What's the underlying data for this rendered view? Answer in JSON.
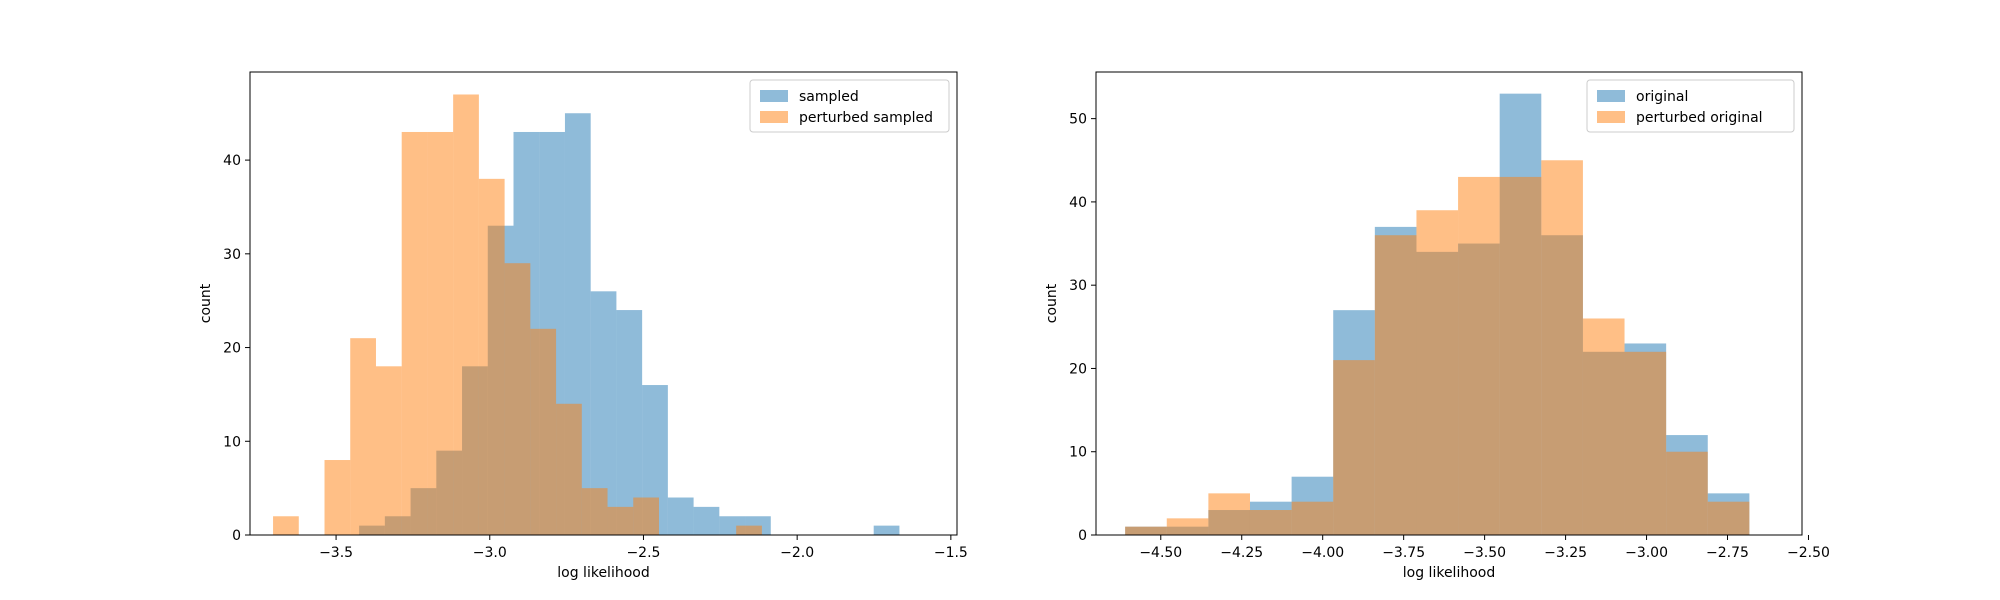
{
  "chart_data": [
    {
      "type": "histogram",
      "xlabel": "log likelihood",
      "ylabel": "count",
      "xlim": [
        -3.78,
        -1.48
      ],
      "ylim": [
        0,
        49.4
      ],
      "xticks": [
        -3.5,
        -3.0,
        -2.5,
        -2.0,
        -1.5
      ],
      "xtick_labels": [
        "−3.5",
        "−3.0",
        "−2.5",
        "−2.0",
        "−1.5"
      ],
      "yticks": [
        0,
        10,
        20,
        30,
        40
      ],
      "ytick_labels": [
        "0",
        "10",
        "20",
        "30",
        "40"
      ],
      "legend_position": "top-right",
      "series": [
        {
          "name": "sampled",
          "color": "#1f77b4",
          "opacity": 0.5,
          "bin_start": -3.425,
          "bin_width": 0.0837,
          "counts": [
            1,
            2,
            5,
            9,
            18,
            33,
            43,
            43,
            45,
            26,
            24,
            16,
            4,
            3,
            2,
            2,
            0,
            0,
            0,
            0,
            1
          ]
        },
        {
          "name": "perturbed sampled",
          "color": "#ff7f0e",
          "opacity": 0.5,
          "bin_start": -3.705,
          "bin_width": 0.0837,
          "counts": [
            2,
            0,
            8,
            21,
            18,
            43,
            43,
            47,
            38,
            29,
            22,
            14,
            5,
            3,
            4,
            0,
            0,
            0,
            1
          ]
        }
      ]
    },
    {
      "type": "histogram",
      "xlabel": "log likelihood",
      "ylabel": "count",
      "xlim": [
        -4.7,
        -2.52
      ],
      "ylim": [
        0,
        55.6
      ],
      "xticks": [
        -4.5,
        -4.25,
        -4.0,
        -3.75,
        -3.5,
        -3.25,
        -3.0,
        -2.75,
        -2.5
      ],
      "xtick_labels": [
        "−4.50",
        "−4.25",
        "−4.00",
        "−3.75",
        "−3.50",
        "−3.25",
        "−3.00",
        "−2.75",
        "−2.50"
      ],
      "yticks": [
        0,
        10,
        20,
        30,
        40,
        50
      ],
      "ytick_labels": [
        "0",
        "10",
        "20",
        "30",
        "40",
        "50"
      ],
      "legend_position": "top-right",
      "series": [
        {
          "name": "original",
          "color": "#1f77b4",
          "opacity": 0.5,
          "bin_start": -4.61,
          "bin_width": 0.1285,
          "counts": [
            1,
            1,
            3,
            4,
            7,
            27,
            37,
            34,
            35,
            53,
            36,
            22,
            23,
            12,
            5
          ]
        },
        {
          "name": "perturbed original",
          "color": "#ff7f0e",
          "opacity": 0.5,
          "bin_start": -4.61,
          "bin_width": 0.1285,
          "counts": [
            1,
            2,
            5,
            3,
            4,
            21,
            36,
            39,
            43,
            43,
            45,
            26,
            22,
            10,
            4
          ]
        }
      ]
    }
  ]
}
